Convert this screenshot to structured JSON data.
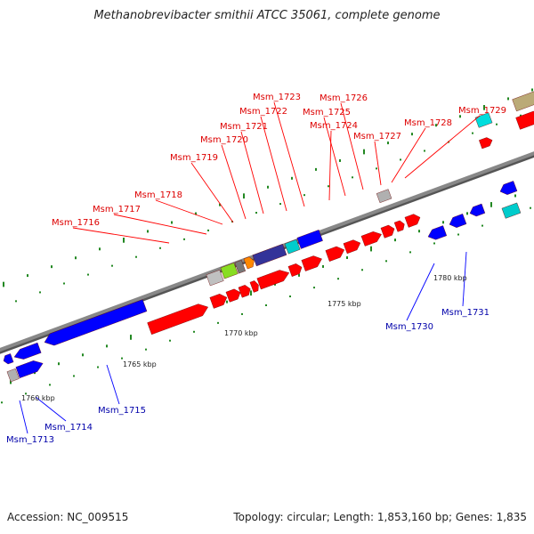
{
  "title": "Methanobrevibacter smithii ATCC 35061, complete genome",
  "accession": "Accession: NC_009515",
  "summary": "Topology: circular; Length: 1,853,160 bp; Genes: 1,835",
  "colors": {
    "forward": "#ff0000",
    "reverse": "#0000ff",
    "backbone": "#888888",
    "tick": "#228822",
    "forward_label": "#dd0000",
    "reverse_label": "#0000aa"
  },
  "scale_marks": [
    {
      "label": "1760 kbp"
    },
    {
      "label": "1765 kbp"
    },
    {
      "label": "1770 kbp"
    },
    {
      "label": "1775 kbp"
    },
    {
      "label": "1780 kbp"
    }
  ],
  "genes": [
    {
      "name": "Msm_1713",
      "strand": "reverse"
    },
    {
      "name": "Msm_1714",
      "strand": "reverse"
    },
    {
      "name": "Msm_1715",
      "strand": "reverse"
    },
    {
      "name": "Msm_1716",
      "strand": "forward"
    },
    {
      "name": "Msm_1717",
      "strand": "forward"
    },
    {
      "name": "Msm_1718",
      "strand": "forward"
    },
    {
      "name": "Msm_1719",
      "strand": "forward"
    },
    {
      "name": "Msm_1720",
      "strand": "forward"
    },
    {
      "name": "Msm_1721",
      "strand": "forward"
    },
    {
      "name": "Msm_1722",
      "strand": "forward"
    },
    {
      "name": "Msm_1723",
      "strand": "forward"
    },
    {
      "name": "Msm_1724",
      "strand": "forward"
    },
    {
      "name": "Msm_1725",
      "strand": "forward"
    },
    {
      "name": "Msm_1726",
      "strand": "forward"
    },
    {
      "name": "Msm_1727",
      "strand": "forward"
    },
    {
      "name": "Msm_1728",
      "strand": "forward"
    },
    {
      "name": "Msm_1729",
      "strand": "forward"
    },
    {
      "name": "Msm_1730",
      "strand": "reverse"
    },
    {
      "name": "Msm_1731",
      "strand": "reverse"
    }
  ]
}
